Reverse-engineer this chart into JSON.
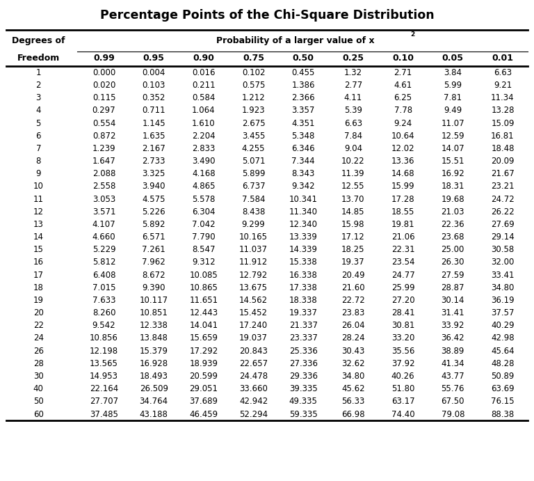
{
  "title": "Percentage Points of the Chi-Square Distribution",
  "col_header_line1": "Degrees of",
  "col_header_line2": "Freedom",
  "prob_header": "Probability of a larger value of x",
  "prob_superscript": "2",
  "columns": [
    "0.99",
    "0.95",
    "0.90",
    "0.75",
    "0.50",
    "0.25",
    "0.10",
    "0.05",
    "0.01"
  ],
  "rows": [
    [
      1,
      "0.000",
      "0.004",
      "0.016",
      "0.102",
      "0.455",
      "1.32",
      "2.71",
      "3.84",
      "6.63"
    ],
    [
      2,
      "0.020",
      "0.103",
      "0.211",
      "0.575",
      "1.386",
      "2.77",
      "4.61",
      "5.99",
      "9.21"
    ],
    [
      3,
      "0.115",
      "0.352",
      "0.584",
      "1.212",
      "2.366",
      "4.11",
      "6.25",
      "7.81",
      "11.34"
    ],
    [
      4,
      "0.297",
      "0.711",
      "1.064",
      "1.923",
      "3.357",
      "5.39",
      "7.78",
      "9.49",
      "13.28"
    ],
    [
      5,
      "0.554",
      "1.145",
      "1.610",
      "2.675",
      "4.351",
      "6.63",
      "9.24",
      "11.07",
      "15.09"
    ],
    [
      6,
      "0.872",
      "1.635",
      "2.204",
      "3.455",
      "5.348",
      "7.84",
      "10.64",
      "12.59",
      "16.81"
    ],
    [
      7,
      "1.239",
      "2.167",
      "2.833",
      "4.255",
      "6.346",
      "9.04",
      "12.02",
      "14.07",
      "18.48"
    ],
    [
      8,
      "1.647",
      "2.733",
      "3.490",
      "5.071",
      "7.344",
      "10.22",
      "13.36",
      "15.51",
      "20.09"
    ],
    [
      9,
      "2.088",
      "3.325",
      "4.168",
      "5.899",
      "8.343",
      "11.39",
      "14.68",
      "16.92",
      "21.67"
    ],
    [
      10,
      "2.558",
      "3.940",
      "4.865",
      "6.737",
      "9.342",
      "12.55",
      "15.99",
      "18.31",
      "23.21"
    ],
    [
      11,
      "3.053",
      "4.575",
      "5.578",
      "7.584",
      "10.341",
      "13.70",
      "17.28",
      "19.68",
      "24.72"
    ],
    [
      12,
      "3.571",
      "5.226",
      "6.304",
      "8.438",
      "11.340",
      "14.85",
      "18.55",
      "21.03",
      "26.22"
    ],
    [
      13,
      "4.107",
      "5.892",
      "7.042",
      "9.299",
      "12.340",
      "15.98",
      "19.81",
      "22.36",
      "27.69"
    ],
    [
      14,
      "4.660",
      "6.571",
      "7.790",
      "10.165",
      "13.339",
      "17.12",
      "21.06",
      "23.68",
      "29.14"
    ],
    [
      15,
      "5.229",
      "7.261",
      "8.547",
      "11.037",
      "14.339",
      "18.25",
      "22.31",
      "25.00",
      "30.58"
    ],
    [
      16,
      "5.812",
      "7.962",
      "9.312",
      "11.912",
      "15.338",
      "19.37",
      "23.54",
      "26.30",
      "32.00"
    ],
    [
      17,
      "6.408",
      "8.672",
      "10.085",
      "12.792",
      "16.338",
      "20.49",
      "24.77",
      "27.59",
      "33.41"
    ],
    [
      18,
      "7.015",
      "9.390",
      "10.865",
      "13.675",
      "17.338",
      "21.60",
      "25.99",
      "28.87",
      "34.80"
    ],
    [
      19,
      "7.633",
      "10.117",
      "11.651",
      "14.562",
      "18.338",
      "22.72",
      "27.20",
      "30.14",
      "36.19"
    ],
    [
      20,
      "8.260",
      "10.851",
      "12.443",
      "15.452",
      "19.337",
      "23.83",
      "28.41",
      "31.41",
      "37.57"
    ],
    [
      22,
      "9.542",
      "12.338",
      "14.041",
      "17.240",
      "21.337",
      "26.04",
      "30.81",
      "33.92",
      "40.29"
    ],
    [
      24,
      "10.856",
      "13.848",
      "15.659",
      "19.037",
      "23.337",
      "28.24",
      "33.20",
      "36.42",
      "42.98"
    ],
    [
      26,
      "12.198",
      "15.379",
      "17.292",
      "20.843",
      "25.336",
      "30.43",
      "35.56",
      "38.89",
      "45.64"
    ],
    [
      28,
      "13.565",
      "16.928",
      "18.939",
      "22.657",
      "27.336",
      "32.62",
      "37.92",
      "41.34",
      "48.28"
    ],
    [
      30,
      "14.953",
      "18.493",
      "20.599",
      "24.478",
      "29.336",
      "34.80",
      "40.26",
      "43.77",
      "50.89"
    ],
    [
      40,
      "22.164",
      "26.509",
      "29.051",
      "33.660",
      "39.335",
      "45.62",
      "51.80",
      "55.76",
      "63.69"
    ],
    [
      50,
      "27.707",
      "34.764",
      "37.689",
      "42.942",
      "49.335",
      "56.33",
      "63.17",
      "67.50",
      "76.15"
    ],
    [
      60,
      "37.485",
      "43.188",
      "46.459",
      "52.294",
      "59.335",
      "66.98",
      "74.40",
      "79.08",
      "88.38"
    ]
  ],
  "bg_color": "#ffffff",
  "text_color": "#000000",
  "line_color": "#000000",
  "title_fontsize": 12.5,
  "header_fontsize": 9.0,
  "data_fontsize": 8.5,
  "fig_width": 7.68,
  "fig_height": 6.91
}
